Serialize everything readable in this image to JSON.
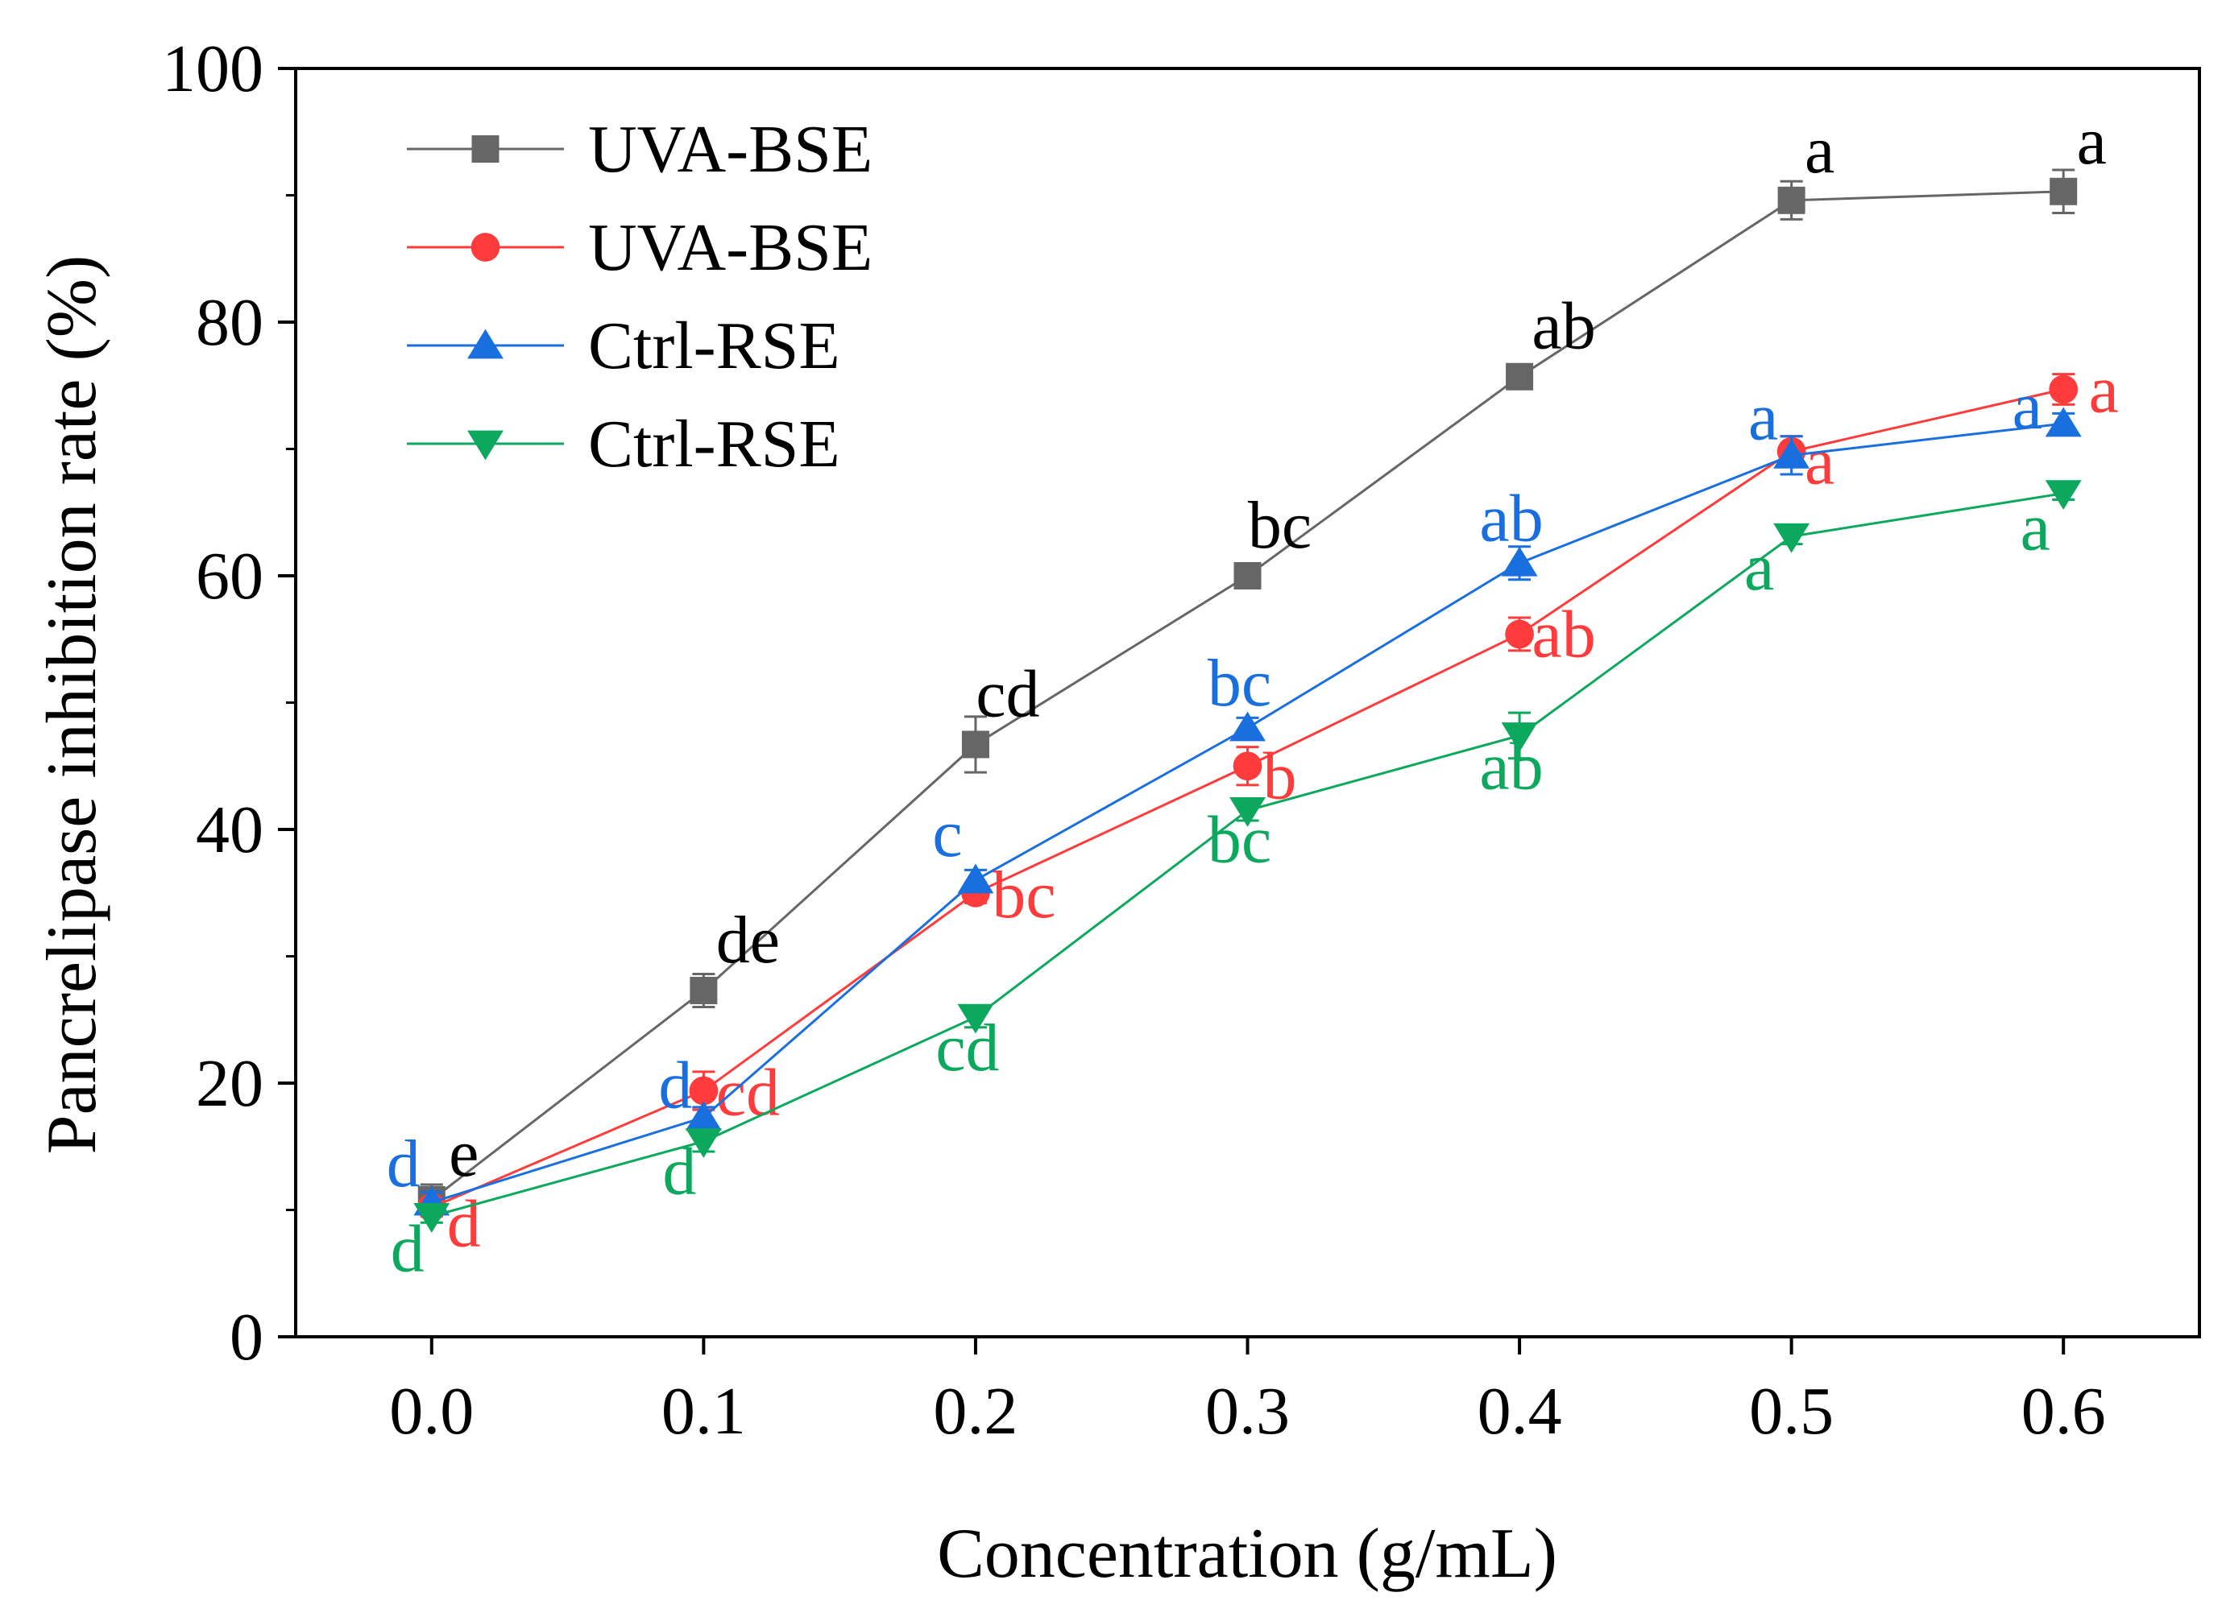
{
  "chart_data": {
    "type": "line",
    "xlabel": "Concentration (g/mL)",
    "ylabel": "Pancrelipase inhibition rate (%)",
    "xlim": [
      -0.05,
      0.65
    ],
    "ylim": [
      0,
      100
    ],
    "x_ticks": [
      "0.0",
      "0.1",
      "0.2",
      "0.3",
      "0.4",
      "0.5",
      "0.6"
    ],
    "y_ticks": [
      "0",
      "20",
      "40",
      "60",
      "80",
      "100"
    ],
    "x": [
      0.0,
      0.1,
      0.2,
      0.3,
      0.4,
      0.5,
      0.6
    ],
    "legend_position": "top-left",
    "grid": false,
    "series": [
      {
        "name": "UVA-BSE",
        "color": "#666666",
        "marker": "square",
        "values": [
          10.8,
          27.3,
          46.7,
          60.0,
          75.7,
          89.6,
          90.3
        ],
        "errors": [
          1.2,
          1.3,
          2.2,
          0.6,
          0.8,
          1.5,
          1.7
        ],
        "letters": [
          "e",
          "de",
          "cd",
          "bc",
          "ab",
          "a",
          "a"
        ]
      },
      {
        "name": "UVA-BSE",
        "color": "#ff3b3b",
        "marker": "circle",
        "values": [
          10.2,
          19.4,
          35.0,
          45.0,
          55.4,
          69.8,
          74.7
        ],
        "errors": [
          0.7,
          1.5,
          0.8,
          1.5,
          1.3,
          1.2,
          1.2
        ],
        "letters": [
          "d",
          "cd",
          "bc",
          "b",
          "ab",
          "a",
          "a"
        ]
      },
      {
        "name": "Ctrl-RSE",
        "color": "#1a6fdf",
        "marker": "triangle-up",
        "values": [
          10.6,
          17.3,
          36.0,
          48.0,
          61.0,
          69.5,
          72.0
        ],
        "errors": [
          0.8,
          0.8,
          0.8,
          0.8,
          1.3,
          1.5,
          0.8
        ],
        "letters": [
          "d",
          "d",
          "c",
          "bc",
          "ab",
          "a",
          "a"
        ]
      },
      {
        "name": "Ctrl-RSE",
        "color": "#0ca85d",
        "marker": "triangle-down",
        "values": [
          9.5,
          15.4,
          25.2,
          41.5,
          47.4,
          63.1,
          66.5
        ],
        "errors": [
          0.5,
          0.8,
          0.8,
          0.8,
          1.8,
          0.6,
          0.5
        ],
        "letters": [
          "d",
          "d",
          "cd",
          "bc",
          "ab",
          "a",
          "a"
        ]
      }
    ]
  }
}
